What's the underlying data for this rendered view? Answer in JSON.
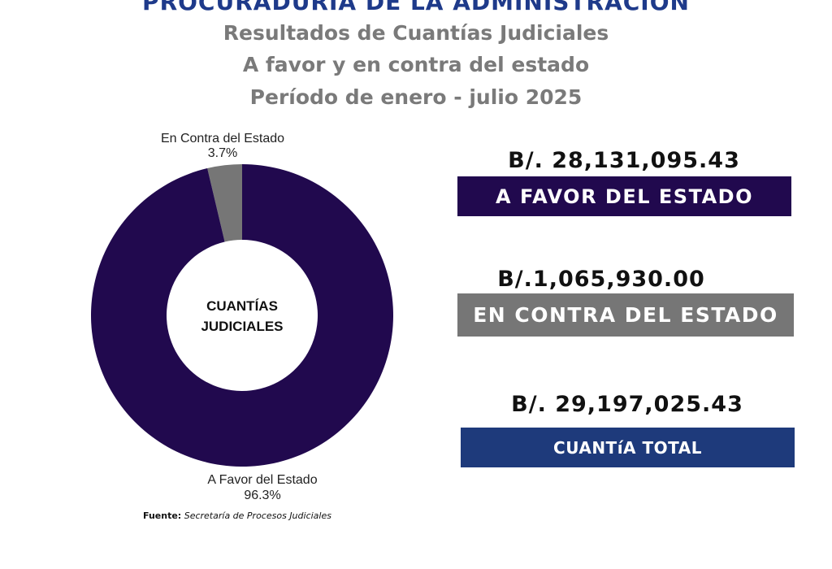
{
  "header": {
    "org_title": "PROCURADURÍA DE LA ADMINISTRACIÓN",
    "subtitle_1": "Resultados de Cuantías Judiciales",
    "subtitle_2": "A favor y en contra del estado",
    "subtitle_3": "Período de enero - julio 2025"
  },
  "chart_data": {
    "type": "pie",
    "variant": "donut",
    "center_label": [
      "CUANTÍAS",
      "JUDICIALES"
    ],
    "slices": [
      {
        "name": "A Favor del Estado",
        "value": 96.3,
        "label": "96.3%",
        "color": "#21094e"
      },
      {
        "name": "En Contra del Estado",
        "value": 3.7,
        "label": "3.7%",
        "color": "#767676"
      }
    ]
  },
  "summary": {
    "favor_amount": "B/. 28,131,095.43",
    "favor_label": "A FAVOR DEL ESTADO",
    "favor_color": "#21094e",
    "contra_amount": "B/.1,065,930.00",
    "contra_label": "EN CONTRA DEL ESTADO",
    "contra_color": "#767676",
    "total_amount": "B/. 29,197,025.43",
    "total_label": "CUANTíA TOTAL",
    "total_color": "#1e3a7b"
  },
  "source": {
    "label": "Fuente:",
    "text": "Secretaría de Procesos Judiciales"
  }
}
